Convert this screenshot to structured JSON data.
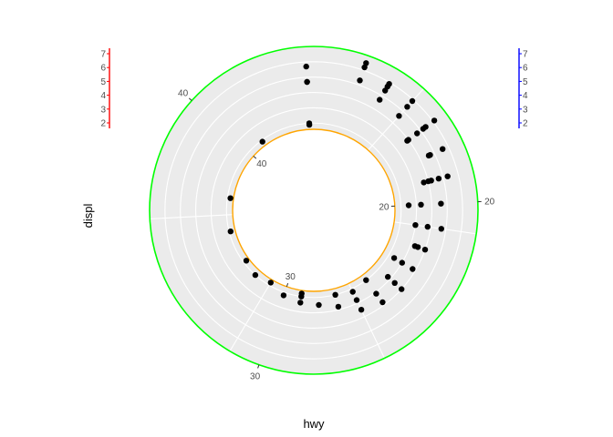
{
  "chart_data": {
    "type": "scatter",
    "coord": "polar",
    "xlabel": "hwy",
    "ylabel": "displ",
    "theta_ticks": [
      "20",
      "30",
      "40"
    ],
    "theta_ticks_inner": [
      "20",
      "30",
      "40"
    ],
    "left_axis_ticks": [
      "2",
      "3",
      "4",
      "5",
      "6",
      "7"
    ],
    "right_axis_ticks": [
      "2",
      "3",
      "4",
      "5",
      "6",
      "7"
    ],
    "colors": {
      "panel": "#ebebeb",
      "grid": "#ffffff",
      "outer_ring": "#00ff00",
      "inner_ring": "#ffa500",
      "points": "#000000",
      "left_axis": "#ff0000",
      "right_axis": "#0000ff"
    },
    "points": [
      {
        "hwy": 12,
        "displ": 4.7
      },
      {
        "hwy": 12,
        "displ": 5.7
      },
      {
        "hwy": 12,
        "displ": 4.7
      },
      {
        "hwy": 14,
        "displ": 6.2
      },
      {
        "hwy": 14,
        "displ": 5.3
      },
      {
        "hwy": 14,
        "displ": 6.5
      },
      {
        "hwy": 15,
        "displ": 5.7
      },
      {
        "hwy": 15,
        "displ": 5.4
      },
      {
        "hwy": 15,
        "displ": 4.7
      },
      {
        "hwy": 15,
        "displ": 5.9
      },
      {
        "hwy": 16,
        "displ": 5.9
      },
      {
        "hwy": 16,
        "displ": 4.6
      },
      {
        "hwy": 16,
        "displ": 5.4
      },
      {
        "hwy": 17,
        "displ": 6.1
      },
      {
        "hwy": 17,
        "displ": 4.7
      },
      {
        "hwy": 17,
        "displ": 5.2
      },
      {
        "hwy": 17,
        "displ": 4.0
      },
      {
        "hwy": 17,
        "displ": 5.4
      },
      {
        "hwy": 17,
        "displ": 3.9
      },
      {
        "hwy": 18,
        "displ": 5.6
      },
      {
        "hwy": 18,
        "displ": 4.7
      },
      {
        "hwy": 18,
        "displ": 4.6
      },
      {
        "hwy": 19,
        "displ": 5.3
      },
      {
        "hwy": 19,
        "displ": 4.7
      },
      {
        "hwy": 19,
        "displ": 4.0
      },
      {
        "hwy": 19,
        "displ": 3.7
      },
      {
        "hwy": 19,
        "displ": 4.2
      },
      {
        "hwy": 20,
        "displ": 4.6
      },
      {
        "hwy": 20,
        "displ": 3.3
      },
      {
        "hwy": 20,
        "displ": 2.5
      },
      {
        "hwy": 21,
        "displ": 4.7
      },
      {
        "hwy": 21,
        "displ": 3.8
      },
      {
        "hwy": 21,
        "displ": 3.0
      },
      {
        "hwy": 22,
        "displ": 4.0
      },
      {
        "hwy": 22,
        "displ": 3.5
      },
      {
        "hwy": 22,
        "displ": 3.3
      },
      {
        "hwy": 23,
        "displ": 3.8
      },
      {
        "hwy": 23,
        "displ": 3.0
      },
      {
        "hwy": 23,
        "displ": 2.4
      },
      {
        "hwy": 24,
        "displ": 4.0
      },
      {
        "hwy": 24,
        "displ": 3.4
      },
      {
        "hwy": 24,
        "displ": 2.8
      },
      {
        "hwy": 25,
        "displ": 3.8
      },
      {
        "hwy": 25,
        "displ": 3.1
      },
      {
        "hwy": 25,
        "displ": 2.0
      },
      {
        "hwy": 26,
        "displ": 3.5
      },
      {
        "hwy": 26,
        "displ": 2.8
      },
      {
        "hwy": 26,
        "displ": 2.2
      },
      {
        "hwy": 27,
        "displ": 2.8
      },
      {
        "hwy": 27,
        "displ": 2.0
      },
      {
        "hwy": 28,
        "displ": 2.5
      },
      {
        "hwy": 29,
        "displ": 2.4
      },
      {
        "hwy": 29,
        "displ": 2.0
      },
      {
        "hwy": 29,
        "displ": 1.8
      },
      {
        "hwy": 30,
        "displ": 2.2
      },
      {
        "hwy": 31,
        "displ": 1.8
      },
      {
        "hwy": 32,
        "displ": 2.0
      },
      {
        "hwy": 33,
        "displ": 1.8
      },
      {
        "hwy": 35,
        "displ": 1.9
      },
      {
        "hwy": 37,
        "displ": 1.8
      },
      {
        "hwy": 41,
        "displ": 1.9
      },
      {
        "hwy": 44,
        "displ": 1.9
      },
      {
        "hwy": 44,
        "displ": 2.0
      }
    ]
  }
}
